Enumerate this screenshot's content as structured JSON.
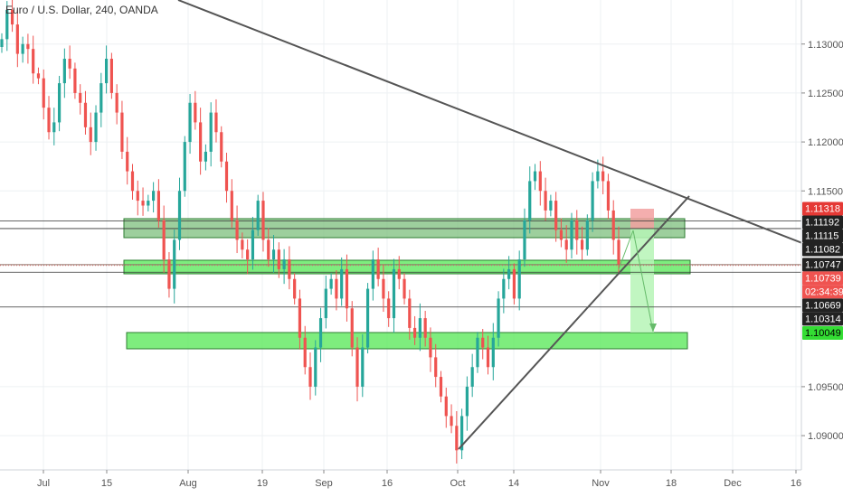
{
  "chart_data": {
    "type": "candlestick",
    "title": "Euro / U.S. Dollar, 240, OANDA",
    "x_tick_labels": [
      "Jul",
      "15",
      "Aug",
      "19",
      "Sep",
      "16",
      "Oct",
      "14",
      "Nov",
      "18",
      "Dec",
      "16"
    ],
    "y_tick_labels": [
      "1.13000",
      "1.12500",
      "1.12000",
      "1.11500",
      "1.09500",
      "1.09000"
    ],
    "ylim": [
      1.0865,
      1.1345
    ],
    "price_labels": [
      {
        "value": 1.11318,
        "text": "1.11318",
        "bg": "#e53935",
        "fg": "#ffffff"
      },
      {
        "value": 1.11192,
        "text": "1.11192",
        "bg": "#222222",
        "fg": "#ffffff"
      },
      {
        "value": 1.11115,
        "text": "1.11115",
        "bg": "#222222",
        "fg": "#ffffff"
      },
      {
        "value": 1.11082,
        "text": "1.11082",
        "bg": "#222222",
        "fg": "#ffffff"
      },
      {
        "value": 1.10747,
        "text": "1.10747",
        "bg": "#222222",
        "fg": "#ffffff"
      },
      {
        "value": 1.10739,
        "text": "1.10739",
        "bg": "#ef5350",
        "fg": "#ffffff"
      },
      {
        "value": 1.10669,
        "text": "1.10669",
        "bg": "#222222",
        "fg": "#ffffff"
      },
      {
        "value": 1.10314,
        "text": "1.10314",
        "bg": "#222222",
        "fg": "#ffffff"
      },
      {
        "value": 1.10049,
        "text": "1.10049",
        "bg": "#33dd33",
        "fg": "#000000"
      }
    ],
    "countdown": "02:34:39",
    "horizontal_lines": [
      1.11192,
      1.11115,
      1.10669,
      1.10314
    ],
    "colors": {
      "up": "#26a69a",
      "down": "#ef5350",
      "trendline": "#555555",
      "zone_dark": "#7cbf7c",
      "zone_light": "#5ee85e",
      "stop_zone": "#f2a0a0",
      "target_zone": "#b6f5b6",
      "current_price_line": "#e57373"
    },
    "series": [
      {
        "close": [
          1.1305,
          1.1335,
          1.132,
          1.129,
          1.13,
          1.1295,
          1.127,
          1.1265,
          1.1235,
          1.121,
          1.122,
          1.126,
          1.1285,
          1.1275,
          1.125,
          1.124,
          1.1215,
          1.12,
          1.123,
          1.126,
          1.1285,
          1.125,
          1.123,
          1.119,
          1.117,
          1.115,
          1.114,
          1.1135,
          1.114,
          1.115,
          1.112,
          1.108,
          1.105,
          1.11,
          1.115,
          1.12,
          1.124,
          1.122,
          1.118,
          1.119,
          1.123,
          1.121,
          1.118,
          1.115,
          1.112,
          1.11,
          1.109,
          1.108,
          1.111,
          1.114,
          1.11,
          1.108,
          1.109,
          1.107,
          1.108,
          1.106,
          1.104,
          1.1,
          1.097,
          1.095,
          1.099,
          1.102,
          1.105,
          1.106,
          1.104,
          1.107,
          1.103,
          1.099,
          1.095,
          1.099,
          1.105,
          1.108,
          1.106,
          1.104,
          1.102,
          1.107,
          1.106,
          1.104,
          1.101,
          1.1,
          1.102,
          1.1,
          1.098,
          1.096,
          1.094,
          1.092,
          1.091,
          1.0885,
          1.092,
          1.095,
          1.097,
          1.1,
          1.099,
          1.097,
          1.1,
          1.104,
          1.106,
          1.107,
          1.104,
          1.108,
          1.112,
          1.116,
          1.117,
          1.115,
          1.113,
          1.114,
          1.111,
          1.11,
          1.109,
          1.112,
          1.11,
          1.109,
          1.112,
          1.116,
          1.117,
          1.116,
          1.113,
          1.11,
          1.1075
        ]
      }
    ]
  }
}
